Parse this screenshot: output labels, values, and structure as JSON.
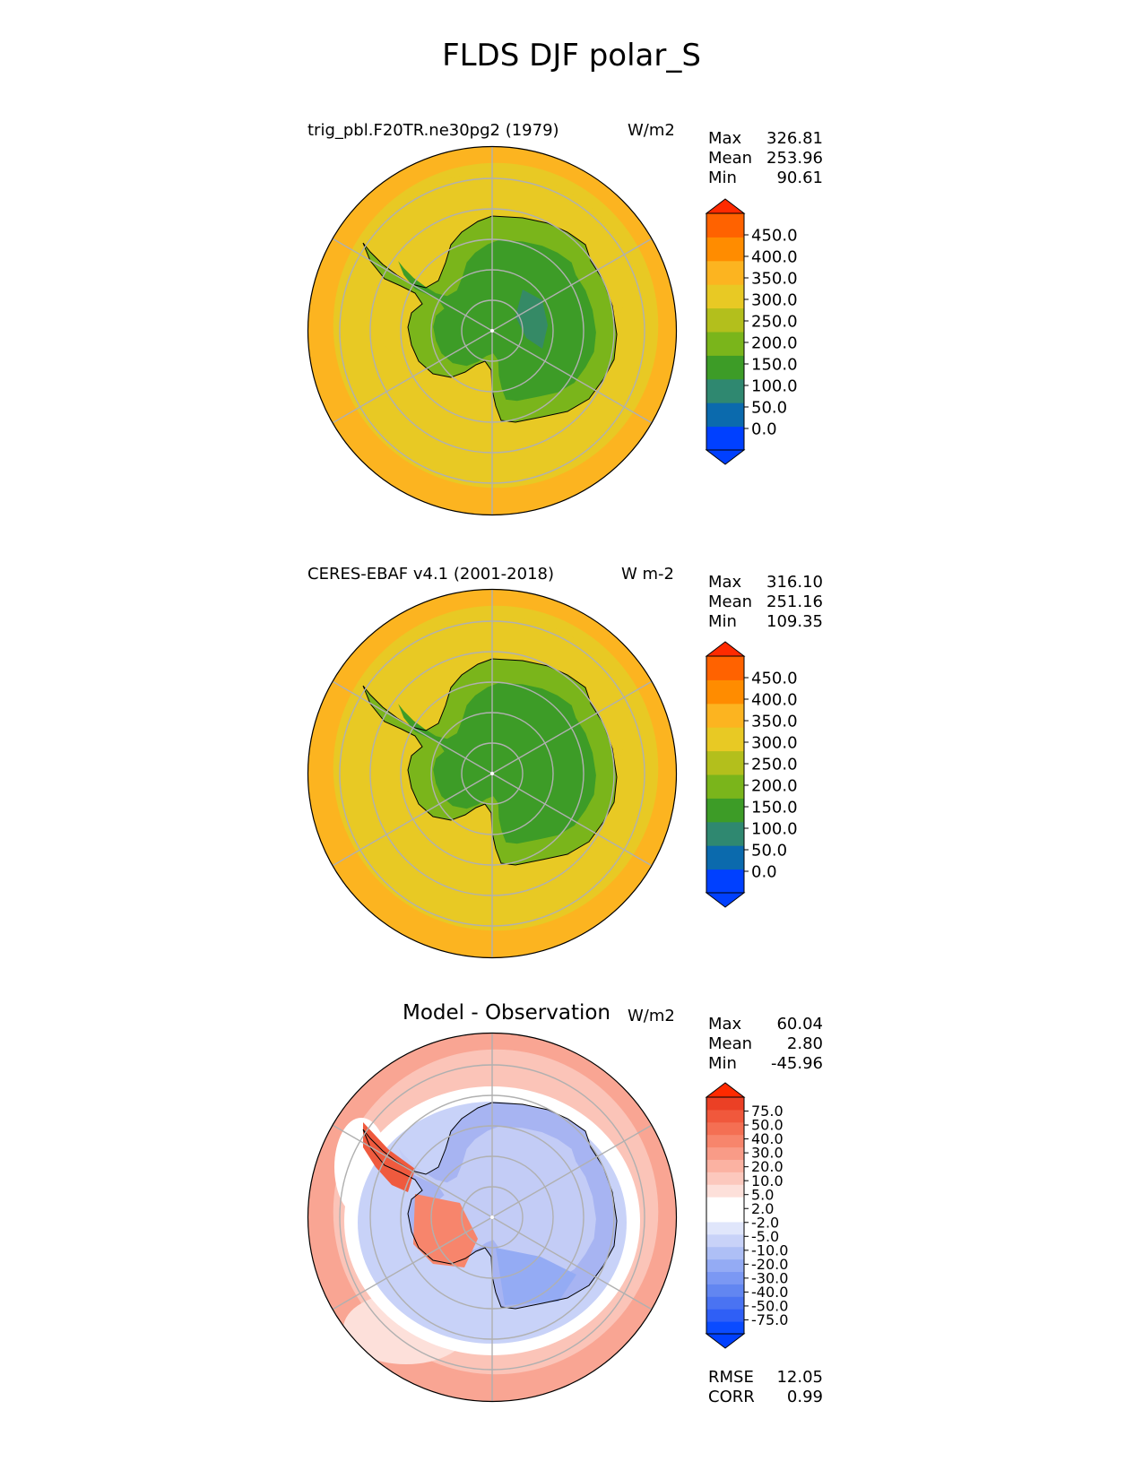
{
  "figure": {
    "title": "FLDS DJF polar_S"
  },
  "panels": [
    {
      "title": "trig_pbl.F20TR.ne30pg2 (1979)",
      "units": "W/m2",
      "stats": [
        {
          "label": "Max",
          "value": "326.81"
        },
        {
          "label": "Mean",
          "value": "253.96"
        },
        {
          "label": "Min",
          "value": "90.61"
        }
      ],
      "ocean_color": "#e8c924",
      "rim_color": "#fcb420",
      "land_color": "#7ab51b",
      "interior_color": "#3d9c27",
      "core_color": "#358a66",
      "colorbar": {
        "extend_max_color": "#ff2a00",
        "extend_min_color": "#0040ff",
        "colors": [
          "#0040ff",
          "#0b6aad",
          "#2f8870",
          "#3d9c27",
          "#7ab51b",
          "#b3bf1c",
          "#e8c924",
          "#fcb420",
          "#ff8c00",
          "#ff6200"
        ],
        "ticks": [
          "0.0",
          "50.0",
          "100.0",
          "150.0",
          "200.0",
          "250.0",
          "300.0",
          "350.0",
          "400.0",
          "450.0"
        ]
      }
    },
    {
      "title": "CERES-EBAF v4.1 (2001-2018)",
      "units": "W m-2",
      "stats": [
        {
          "label": "Max",
          "value": "316.10"
        },
        {
          "label": "Mean",
          "value": "251.16"
        },
        {
          "label": "Min",
          "value": "109.35"
        }
      ],
      "ocean_color": "#e8c924",
      "rim_color": "#fcb420",
      "land_color": "#7ab51b",
      "interior_color": "#3d9c27",
      "core_color": "#3d9c27",
      "colorbar": {
        "extend_max_color": "#ff2a00",
        "extend_min_color": "#0040ff",
        "colors": [
          "#0040ff",
          "#0b6aad",
          "#2f8870",
          "#3d9c27",
          "#7ab51b",
          "#b3bf1c",
          "#e8c924",
          "#fcb420",
          "#ff8c00",
          "#ff6200"
        ],
        "ticks": [
          "0.0",
          "50.0",
          "100.0",
          "150.0",
          "200.0",
          "250.0",
          "300.0",
          "350.0",
          "400.0",
          "450.0"
        ]
      }
    },
    {
      "title": "Model - Observation",
      "units": "W/m2",
      "stats": [
        {
          "label": "Max",
          "value": "60.04"
        },
        {
          "label": "Mean",
          "value": "2.80"
        },
        {
          "label": "Min",
          "value": "-45.96"
        }
      ],
      "ocean_color": "#fbc4b8",
      "rim_color": "#f9a593",
      "land_color": "#a7b4f2",
      "interior_color": "#c3ccf6",
      "peninsula_color": "#ef5a3e",
      "colorbar": {
        "extend_max_color": "#ff2a00",
        "extend_min_color": "#0040ff",
        "colors": [
          "#0a4bff",
          "#2f5ff6",
          "#4a73f2",
          "#6286f1",
          "#7b98f3",
          "#94abf4",
          "#aebff6",
          "#c8d2f8",
          "#e0e6fb",
          "#ffffff",
          "#ffffff",
          "#fde0da",
          "#fcc8bd",
          "#fbb2a2",
          "#f99b87",
          "#f7856c",
          "#f46f53",
          "#f0583c",
          "#eb4025"
        ],
        "ticks": [
          "-75.0",
          "-50.0",
          "-40.0",
          "-30.0",
          "-20.0",
          "-10.0",
          "-5.0",
          "-2.0",
          "2.0",
          "5.0",
          "10.0",
          "20.0",
          "30.0",
          "40.0",
          "50.0",
          "75.0"
        ]
      },
      "extra_stats": [
        {
          "label": "RMSE",
          "value": "12.05"
        },
        {
          "label": "CORR",
          "value": "0.99"
        }
      ]
    }
  ]
}
